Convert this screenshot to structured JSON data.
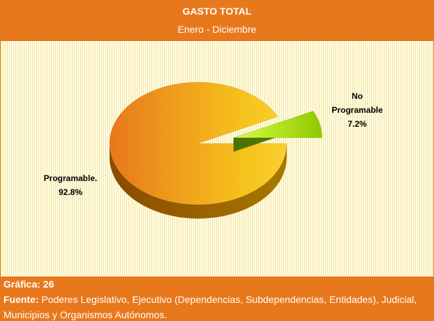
{
  "chart_data": {
    "type": "pie",
    "title": "GASTO TOTAL",
    "subtitle": "Enero - Diciembre",
    "categories": [
      "Programable.",
      "No Programable"
    ],
    "values": [
      92.8,
      7.2
    ],
    "value_labels": [
      "92.8%",
      "7.2%"
    ],
    "colors": [
      "#f0a020",
      "#b8e81c"
    ],
    "figure_label": "Gráfica: 26",
    "source_label": "Fuente:",
    "source": "Poderes Legislativo, Ejecutivo (Dependencias, Subdependencias, Entidades), Judicial, Municipios y Organismos Autónomos."
  }
}
